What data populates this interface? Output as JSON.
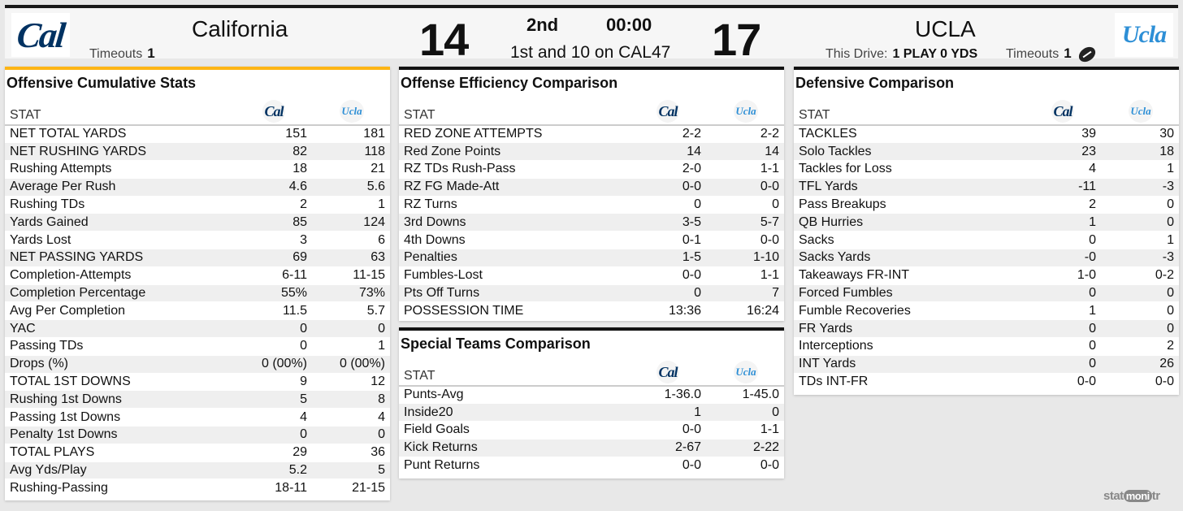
{
  "scoreboard": {
    "home": {
      "name": "California",
      "logo_text": "Cal",
      "timeouts_label": "Timeouts",
      "timeouts": "1",
      "score": "14"
    },
    "away": {
      "name": "UCLA",
      "logo_text": "Ucla",
      "timeouts_label": "Timeouts",
      "timeouts": "1",
      "score": "17"
    },
    "quarter": "2nd",
    "clock": "00:00",
    "situation": "1st and 10 on CAL47",
    "drive_label": "This Drive:",
    "drive_value": "1 PLAY 0 YDS",
    "colors": {
      "cal_navy": "#003262",
      "ucla_blue": "#2d8fd6",
      "accent_gold": "#fdb515"
    }
  },
  "offense": {
    "title": "Offensive Cumulative Stats",
    "stat_header": "STAT",
    "rows": [
      {
        "stat": "NET TOTAL YARDS",
        "cal": "151",
        "ucla": "181"
      },
      {
        "stat": "NET RUSHING YARDS",
        "cal": "82",
        "ucla": "118"
      },
      {
        "stat": "Rushing Attempts",
        "cal": "18",
        "ucla": "21"
      },
      {
        "stat": "Average Per Rush",
        "cal": "4.6",
        "ucla": "5.6"
      },
      {
        "stat": "Rushing TDs",
        "cal": "2",
        "ucla": "1"
      },
      {
        "stat": "Yards Gained",
        "cal": "85",
        "ucla": "124"
      },
      {
        "stat": "Yards Lost",
        "cal": "3",
        "ucla": "6"
      },
      {
        "stat": "NET PASSING YARDS",
        "cal": "69",
        "ucla": "63"
      },
      {
        "stat": "Completion-Attempts",
        "cal": "6-11",
        "ucla": "11-15"
      },
      {
        "stat": "Completion Percentage",
        "cal": "55%",
        "ucla": "73%"
      },
      {
        "stat": "Avg Per Completion",
        "cal": "11.5",
        "ucla": "5.7"
      },
      {
        "stat": "YAC",
        "cal": "0",
        "ucla": "0"
      },
      {
        "stat": "Passing TDs",
        "cal": "0",
        "ucla": "1"
      },
      {
        "stat": "Drops (%)",
        "cal": "0 (00%)",
        "ucla": "0 (00%)"
      },
      {
        "stat": "TOTAL 1ST DOWNS",
        "cal": "9",
        "ucla": "12"
      },
      {
        "stat": "Rushing 1st Downs",
        "cal": "5",
        "ucla": "8"
      },
      {
        "stat": "Passing 1st Downs",
        "cal": "4",
        "ucla": "4"
      },
      {
        "stat": "Penalty 1st Downs",
        "cal": "0",
        "ucla": "0"
      },
      {
        "stat": "TOTAL PLAYS",
        "cal": "29",
        "ucla": "36"
      },
      {
        "stat": "Avg Yds/Play",
        "cal": "5.2",
        "ucla": "5"
      },
      {
        "stat": "Rushing-Passing",
        "cal": "18-11",
        "ucla": "21-15"
      }
    ]
  },
  "efficiency": {
    "title": "Offense Efficiency Comparison",
    "stat_header": "STAT",
    "rows": [
      {
        "stat": "RED ZONE ATTEMPTS",
        "cal": "2-2",
        "ucla": "2-2"
      },
      {
        "stat": "Red Zone Points",
        "cal": "14",
        "ucla": "14"
      },
      {
        "stat": "RZ TDs Rush-Pass",
        "cal": "2-0",
        "ucla": "1-1"
      },
      {
        "stat": "RZ FG Made-Att",
        "cal": "0-0",
        "ucla": "0-0"
      },
      {
        "stat": "RZ Turns",
        "cal": "0",
        "ucla": "0"
      },
      {
        "stat": "3rd Downs",
        "cal": "3-5",
        "ucla": "5-7"
      },
      {
        "stat": "4th Downs",
        "cal": "0-1",
        "ucla": "0-0"
      },
      {
        "stat": "Penalties",
        "cal": "1-5",
        "ucla": "1-10"
      },
      {
        "stat": "Fumbles-Lost",
        "cal": "0-0",
        "ucla": "1-1"
      },
      {
        "stat": "Pts Off Turns",
        "cal": "0",
        "ucla": "7"
      },
      {
        "stat": "POSSESSION TIME",
        "cal": "13:36",
        "ucla": "16:24"
      }
    ]
  },
  "special": {
    "title": "Special Teams Comparison",
    "stat_header": "STAT",
    "rows": [
      {
        "stat": "Punts-Avg",
        "cal": "1-36.0",
        "ucla": "1-45.0"
      },
      {
        "stat": "Inside20",
        "cal": "1",
        "ucla": "0"
      },
      {
        "stat": "Field Goals",
        "cal": "0-0",
        "ucla": "1-1"
      },
      {
        "stat": "Kick Returns",
        "cal": "2-67",
        "ucla": "2-22"
      },
      {
        "stat": "Punt Returns",
        "cal": "0-0",
        "ucla": "0-0"
      }
    ]
  },
  "defense": {
    "title": "Defensive Comparison",
    "stat_header": "STAT",
    "rows": [
      {
        "stat": "TACKLES",
        "cal": "39",
        "ucla": "30"
      },
      {
        "stat": "Solo Tackles",
        "cal": "23",
        "ucla": "18"
      },
      {
        "stat": "Tackles for Loss",
        "cal": "4",
        "ucla": "1"
      },
      {
        "stat": "TFL Yards",
        "cal": "-11",
        "ucla": "-3"
      },
      {
        "stat": "Pass Breakups",
        "cal": "2",
        "ucla": "0"
      },
      {
        "stat": "QB Hurries",
        "cal": "1",
        "ucla": "0"
      },
      {
        "stat": "Sacks",
        "cal": "0",
        "ucla": "1"
      },
      {
        "stat": "Sacks Yards",
        "cal": "-0",
        "ucla": "-3"
      },
      {
        "stat": "Takeaways FR-INT",
        "cal": "1-0",
        "ucla": "0-2"
      },
      {
        "stat": "Forced Fumbles",
        "cal": "0",
        "ucla": "0"
      },
      {
        "stat": "Fumble Recoveries",
        "cal": "1",
        "ucla": "0"
      },
      {
        "stat": "FR Yards",
        "cal": "0",
        "ucla": "0"
      },
      {
        "stat": "Interceptions",
        "cal": "0",
        "ucla": "2"
      },
      {
        "stat": "INT Yards",
        "cal": "0",
        "ucla": "26"
      },
      {
        "stat": "TDs INT-FR",
        "cal": "0-0",
        "ucla": "0-0"
      }
    ]
  },
  "brand": {
    "left": "stat",
    "mid": "moni",
    "right": "tr"
  }
}
